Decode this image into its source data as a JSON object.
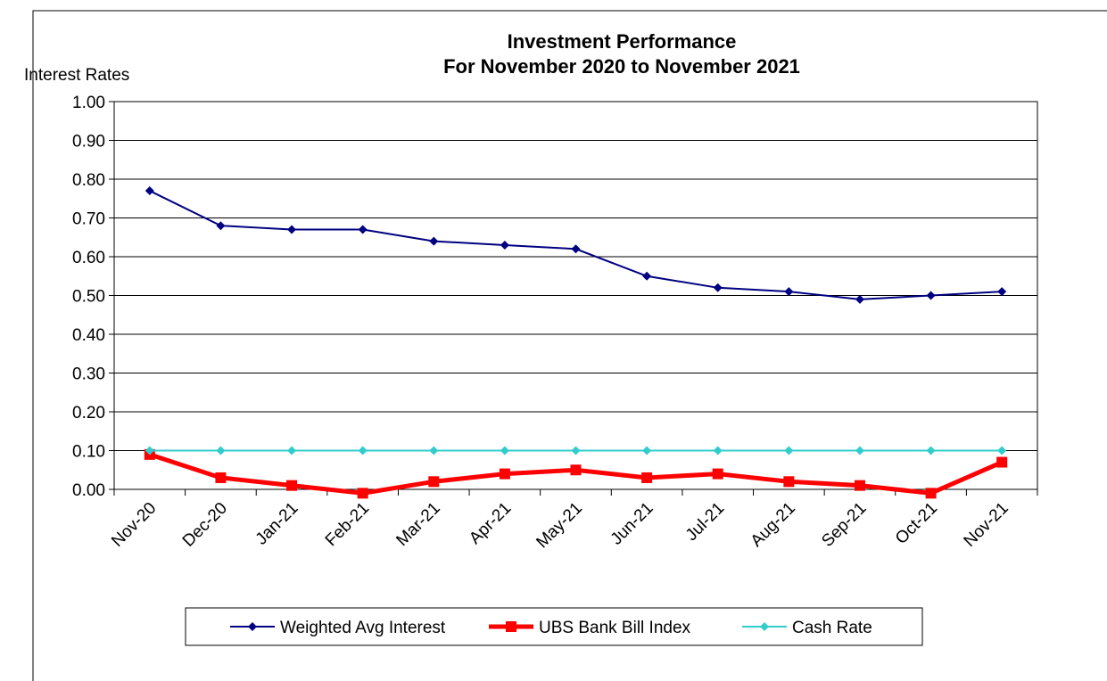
{
  "chart_data": {
    "type": "line",
    "title": "Investment Performance",
    "subtitle": "For November 2020 to November 2021",
    "y_label": "Interest Rates",
    "categories": [
      "Nov-20",
      "Dec-20",
      "Jan-21",
      "Feb-21",
      "Mar-21",
      "Apr-21",
      "May-21",
      "Jun-21",
      "Jul-21",
      "Aug-21",
      "Sep-21",
      "Oct-21",
      "Nov-21"
    ],
    "series": [
      {
        "name": "Weighted Avg Interest",
        "color": "#000080",
        "marker": "diamond",
        "values": [
          0.77,
          0.68,
          0.67,
          0.67,
          0.64,
          0.63,
          0.62,
          0.55,
          0.52,
          0.51,
          0.49,
          0.5,
          0.51
        ]
      },
      {
        "name": "UBS Bank Bill Index",
        "color": "#ff0000",
        "marker": "square",
        "values": [
          0.09,
          0.03,
          0.01,
          -0.01,
          0.02,
          0.04,
          0.05,
          0.03,
          0.04,
          0.02,
          0.01,
          -0.01,
          0.07
        ]
      },
      {
        "name": "Cash Rate",
        "color": "#33cccc",
        "marker": "diamond",
        "values": [
          0.1,
          0.1,
          0.1,
          0.1,
          0.1,
          0.1,
          0.1,
          0.1,
          0.1,
          0.1,
          0.1,
          0.1,
          0.1
        ]
      }
    ],
    "ylim": [
      0,
      1
    ],
    "yticks": [
      {
        "value": 0,
        "label": "0.00"
      },
      {
        "value": 0.1,
        "label": "0.10"
      },
      {
        "value": 0.2,
        "label": "0.20"
      },
      {
        "value": 0.3,
        "label": "0.30"
      },
      {
        "value": 0.4,
        "label": "0.40"
      },
      {
        "value": 0.5,
        "label": "0.50"
      },
      {
        "value": 0.6,
        "label": "0.60"
      },
      {
        "value": 0.7,
        "label": "0.70"
      },
      {
        "value": 0.8,
        "label": "0.80"
      },
      {
        "value": 0.9,
        "label": "0.90"
      },
      {
        "value": 1,
        "label": "1.00"
      }
    ],
    "grid": true,
    "legend": "bottom"
  }
}
